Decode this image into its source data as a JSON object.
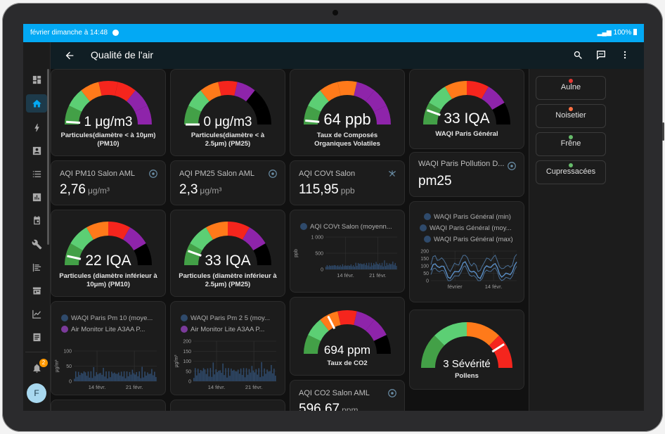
{
  "status": {
    "time": "février dimanche à 14:48",
    "battery": "100%"
  },
  "header": {
    "title": "Qualité de l'air"
  },
  "sidebar": {
    "badge": "2",
    "avatar": "F"
  },
  "gauges": {
    "pm10": {
      "value": "1 μg/m3",
      "name": "Particules(diamètre < à 10μm) (PM10)",
      "level": 0.02
    },
    "pm25": {
      "value": "0 μg/m3",
      "name": "Particules(diamètre < à 2.5μm) (PM25)",
      "level": 0.0
    },
    "cov": {
      "value": "64 ppb",
      "name": "Taux de Composés Organiques Volatiles",
      "level": 0.03
    },
    "waqi": {
      "value": "33 IQA",
      "name": "WAQI Paris Général",
      "level": 0.11
    },
    "iqa10": {
      "value": "22 IQA",
      "name": "Particules (diamètre inférieur à 10μm) (PM10)",
      "level": 0.07
    },
    "iqa25": {
      "value": "33 IQA",
      "name": "Particules (diamètre inférieur à 2.5μm) (PM25)",
      "level": 0.11
    },
    "co2": {
      "value": "694 ppm",
      "name": "Taux de CO2",
      "level": 0.35
    },
    "pollens": {
      "value": "3 Sévérité",
      "name": "Pollens",
      "level": 0.82
    }
  },
  "entities": {
    "pm10": {
      "name": "AQI PM10 Salon AML",
      "value": "2,76",
      "unit": "μg/m³"
    },
    "pm25": {
      "name": "AQI PM25 Salon AML",
      "value": "2,3",
      "unit": "μg/m³"
    },
    "cov": {
      "name": "AQI COVt Salon",
      "value": "115,95",
      "unit": "ppb"
    },
    "waqi": {
      "name": "WAQI Paris Pollution D...",
      "value": "pm25",
      "unit": ""
    },
    "co2": {
      "name": "AQI CO2 Salon AML",
      "value": "596,67",
      "unit": "ppm"
    }
  },
  "charts": {
    "pm10": {
      "legend": [
        "WAQI Paris Pm 10 (moye...",
        "Air Monitor Lite A3AA P..."
      ],
      "yunit": "μg/m³",
      "yticks": [
        "100",
        "50",
        "0"
      ],
      "xticks": [
        "14 févr.",
        "21 févr."
      ]
    },
    "pm25": {
      "legend": [
        "WAQI Paris Pm 2 5 (moy...",
        "Air Monitor Lite A3AA P..."
      ],
      "yunit": "μg/m³",
      "yticks": [
        "200",
        "150",
        "100",
        "50",
        "0"
      ],
      "xticks": [
        "14 févr.",
        "21 févr."
      ]
    },
    "cov": {
      "legend": [
        "AQI COVt Salon (moyenn..."
      ],
      "yunit": "ppb",
      "yticks": [
        "1 000",
        "500",
        "0"
      ],
      "xticks": [
        "14 févr.",
        "21 févr."
      ]
    },
    "waqi": {
      "legend": [
        "WAQI Paris Général (min)",
        "WAQI Paris Général (moy...",
        "WAQI Paris Général (max)"
      ],
      "yticks": [
        "200",
        "150",
        "100",
        "50",
        "0"
      ],
      "xticks": [
        "février",
        "14 févr."
      ]
    }
  },
  "pollens": [
    {
      "name": "Aulne",
      "color": "#e53935"
    },
    {
      "name": "Noisetier",
      "color": "#ff7043"
    },
    {
      "name": "Frêne",
      "color": "#66bb6a"
    },
    {
      "name": "Cupressacées",
      "color": "#66bb6a"
    }
  ],
  "colors": {
    "accent": "#03a9f4",
    "green": "#43a047",
    "lightgreen": "#5ccf74",
    "orange": "#ff7a1a",
    "red": "#f5251d",
    "purple": "#8e24aa",
    "black": "#000000"
  }
}
